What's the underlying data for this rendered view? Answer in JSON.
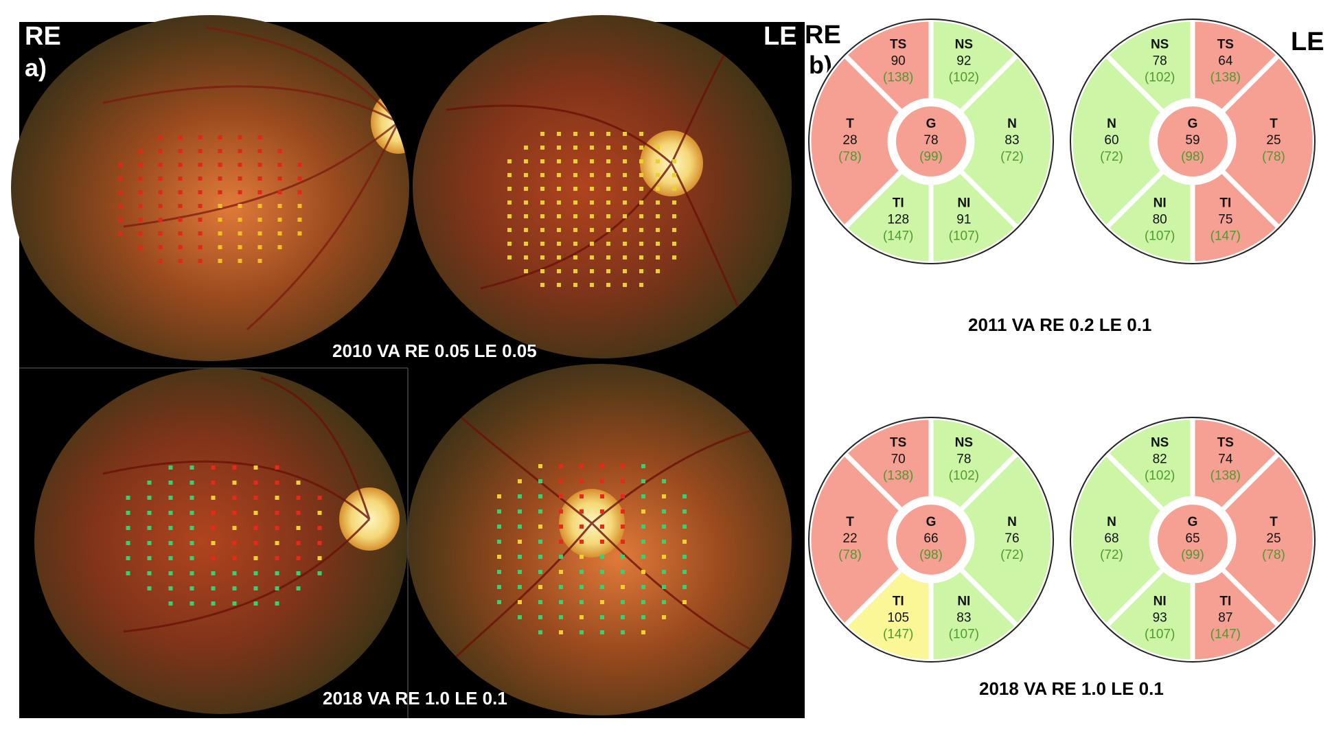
{
  "panel_a": {
    "letter": "a)",
    "eye_left": "RE",
    "eye_right": "LE",
    "caption_top": "2010 VA RE 0.05 LE 0.05",
    "caption_bottom": "2018 VA RE 1.0 LE 0.1"
  },
  "panel_b": {
    "letter": "b)",
    "eye_left": "RE",
    "eye_right": "LE",
    "caption_top": "2011 VA RE 0.2 LE 0.1",
    "caption_bottom": "2018 VA RE 1.0 LE 0.1"
  },
  "colors": {
    "red": "#f5a093",
    "green": "#ccf5a5",
    "yellow": "#fbf797",
    "ref_text": "#4f9a2f"
  },
  "charts": [
    {
      "id": "2011-RE",
      "G": {
        "label": "G",
        "value": "78",
        "ref": "(99)",
        "color": "red"
      },
      "TS": {
        "label": "TS",
        "value": "90",
        "ref": "(138)",
        "color": "red"
      },
      "NS": {
        "label": "NS",
        "value": "92",
        "ref": "(102)",
        "color": "green"
      },
      "N": {
        "label": "N",
        "value": "83",
        "ref": "(72)",
        "color": "green"
      },
      "NI": {
        "label": "NI",
        "value": "91",
        "ref": "(107)",
        "color": "green"
      },
      "TI": {
        "label": "TI",
        "value": "128",
        "ref": "(147)",
        "color": "green"
      },
      "T": {
        "label": "T",
        "value": "28",
        "ref": "(78)",
        "color": "red"
      }
    },
    {
      "id": "2011-LE",
      "G": {
        "label": "G",
        "value": "59",
        "ref": "(98)",
        "color": "red"
      },
      "TS": {
        "label": "TS",
        "value": "64",
        "ref": "(138)",
        "color": "red"
      },
      "NS": {
        "label": "NS",
        "value": "78",
        "ref": "(102)",
        "color": "green"
      },
      "N": {
        "label": "N",
        "value": "60",
        "ref": "(72)",
        "color": "green"
      },
      "NI": {
        "label": "NI",
        "value": "80",
        "ref": "(107)",
        "color": "green"
      },
      "TI": {
        "label": "TI",
        "value": "75",
        "ref": "(147)",
        "color": "red"
      },
      "T": {
        "label": "T",
        "value": "25",
        "ref": "(78)",
        "color": "red"
      }
    },
    {
      "id": "2018-RE",
      "G": {
        "label": "G",
        "value": "66",
        "ref": "(98)",
        "color": "red"
      },
      "TS": {
        "label": "TS",
        "value": "70",
        "ref": "(138)",
        "color": "red"
      },
      "NS": {
        "label": "NS",
        "value": "78",
        "ref": "(102)",
        "color": "green"
      },
      "N": {
        "label": "N",
        "value": "76",
        "ref": "(72)",
        "color": "green"
      },
      "NI": {
        "label": "NI",
        "value": "83",
        "ref": "(107)",
        "color": "green"
      },
      "TI": {
        "label": "TI",
        "value": "105",
        "ref": "(147)",
        "color": "yellow"
      },
      "T": {
        "label": "T",
        "value": "22",
        "ref": "(78)",
        "color": "red"
      }
    },
    {
      "id": "2018-LE",
      "G": {
        "label": "G",
        "value": "65",
        "ref": "(99)",
        "color": "red"
      },
      "TS": {
        "label": "TS",
        "value": "74",
        "ref": "(138)",
        "color": "red"
      },
      "NS": {
        "label": "NS",
        "value": "82",
        "ref": "(102)",
        "color": "green"
      },
      "N": {
        "label": "N",
        "value": "68",
        "ref": "(72)",
        "color": "green"
      },
      "NI": {
        "label": "NI",
        "value": "93",
        "ref": "(107)",
        "color": "green"
      },
      "TI": {
        "label": "TI",
        "value": "87",
        "ref": "(147)",
        "color": "red"
      },
      "T": {
        "label": "T",
        "value": "25",
        "ref": "(78)",
        "color": "red"
      }
    }
  ]
}
